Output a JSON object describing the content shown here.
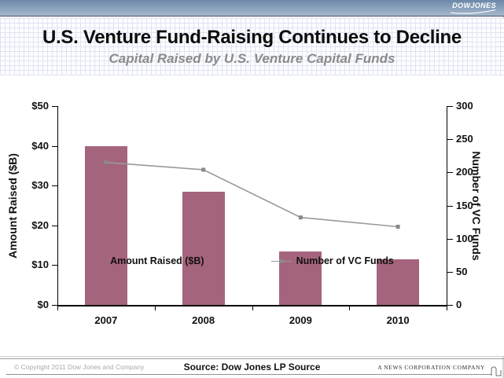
{
  "header": {
    "logo_text": "DOWJONES",
    "title": "U.S. Venture Fund-Raising Continues to Decline",
    "subtitle": "Capital Raised by U.S. Venture Capital Funds"
  },
  "chart_data": {
    "type": "bar",
    "categories": [
      "2007",
      "2008",
      "2009",
      "2010"
    ],
    "series": [
      {
        "name": "Amount Raised ($B)",
        "type": "bar",
        "axis": "left",
        "values": [
          40,
          28.5,
          13.5,
          11.5
        ],
        "color": "#A5647D"
      },
      {
        "name": "Number of VC Funds",
        "type": "line",
        "axis": "right",
        "values": [
          215,
          204,
          132,
          118
        ],
        "color": "#999999",
        "marker_color": "#8A8A8A"
      }
    ],
    "left_axis": {
      "label": "Amount Raised ($B)",
      "min": 0,
      "max": 50,
      "step": 10,
      "tick_prefix": "$"
    },
    "right_axis": {
      "label": "Number of VC Funds",
      "min": 0,
      "max": 300,
      "step": 50,
      "tick_prefix": ""
    },
    "grid": false,
    "legend_position": "bottom"
  },
  "footer": {
    "copyright": "© Copyright 2011 Dow Jones and Company",
    "source": "Source: Dow Jones LP Source",
    "company": "A NEWS CORPORATION COMPANY"
  }
}
